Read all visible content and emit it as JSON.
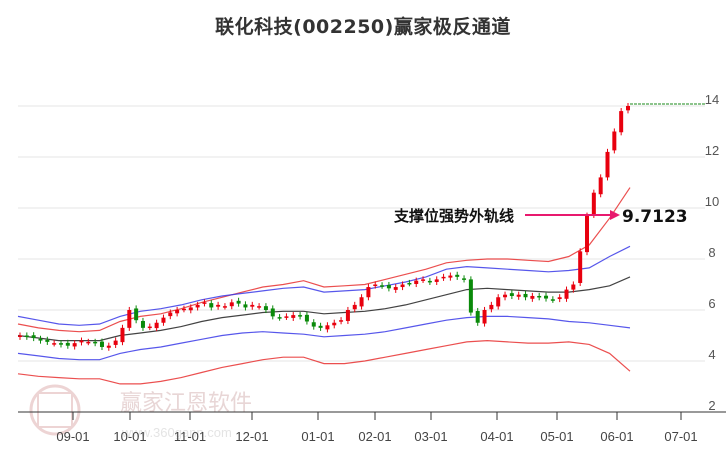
{
  "chart_data": {
    "type": "candlestick",
    "title": "联化科技(002250)赢家极反通道",
    "xlabel": "",
    "ylabel": "",
    "ylim": [
      2,
      14
    ],
    "yticks": [
      2,
      4,
      6,
      8,
      10,
      12,
      14
    ],
    "xticks": [
      "09-01",
      "10-01",
      "11-01",
      "12-01",
      "01-01",
      "02-01",
      "03-01",
      "04-01",
      "05-01",
      "06-01",
      "07-01"
    ],
    "grid": true,
    "annotation": {
      "label": "支撑位强势外轨线",
      "value": "9.7123",
      "arrow_color": "#e8196e"
    },
    "last_price_line": 14,
    "series": [
      {
        "name": "outer-upper-band",
        "color": "#e83030",
        "values": [
          5.45,
          5.3,
          5.2,
          5.15,
          5.2,
          5.55,
          5.75,
          5.85,
          6.05,
          6.3,
          6.5,
          6.7,
          6.9,
          7.0,
          7.15,
          6.9,
          6.95,
          7.0,
          7.2,
          7.4,
          7.6,
          7.85,
          7.95,
          8.0,
          8.0,
          7.95,
          7.9,
          8.1,
          8.55,
          9.6,
          10.8
        ]
      },
      {
        "name": "inner-upper-band",
        "color": "#3a3ae8",
        "values": [
          5.75,
          5.6,
          5.45,
          5.4,
          5.45,
          5.75,
          5.95,
          6.05,
          6.2,
          6.4,
          6.55,
          6.65,
          6.75,
          6.85,
          6.9,
          6.7,
          6.75,
          6.8,
          6.95,
          7.1,
          7.3,
          7.6,
          7.7,
          7.65,
          7.6,
          7.55,
          7.5,
          7.55,
          7.65,
          8.1,
          8.5
        ]
      },
      {
        "name": "middle-line",
        "color": "#222222",
        "values": [
          5.0,
          4.9,
          4.8,
          4.8,
          4.8,
          5.0,
          5.1,
          5.2,
          5.35,
          5.55,
          5.7,
          5.8,
          5.9,
          5.95,
          5.95,
          5.85,
          5.9,
          5.95,
          6.05,
          6.2,
          6.4,
          6.6,
          6.8,
          6.85,
          6.8,
          6.75,
          6.7,
          6.7,
          6.8,
          6.95,
          7.3
        ]
      },
      {
        "name": "inner-lower-band",
        "color": "#3a3ae8",
        "values": [
          4.3,
          4.2,
          4.1,
          4.05,
          4.05,
          4.3,
          4.45,
          4.55,
          4.7,
          4.85,
          5.0,
          5.1,
          5.15,
          5.1,
          5.05,
          4.95,
          5.0,
          5.05,
          5.15,
          5.3,
          5.45,
          5.6,
          5.7,
          5.75,
          5.75,
          5.7,
          5.65,
          5.55,
          5.5,
          5.4,
          5.3
        ]
      },
      {
        "name": "outer-lower-band",
        "color": "#e83030",
        "values": [
          3.5,
          3.4,
          3.35,
          3.3,
          3.3,
          3.1,
          3.1,
          3.2,
          3.35,
          3.55,
          3.75,
          3.9,
          4.05,
          4.15,
          4.15,
          3.9,
          3.9,
          4.0,
          4.15,
          4.3,
          4.45,
          4.6,
          4.75,
          4.8,
          4.75,
          4.7,
          4.7,
          4.75,
          4.65,
          4.3,
          3.6
        ]
      }
    ],
    "close_prices": [
      5.0,
      4.95,
      4.9,
      4.8,
      4.75,
      4.7,
      4.65,
      4.6,
      4.7,
      4.8,
      4.75,
      4.7,
      4.55,
      4.6,
      4.8,
      5.3,
      6.0,
      5.6,
      5.3,
      5.35,
      5.5,
      5.7,
      5.9,
      6.0,
      6.05,
      6.1,
      6.2,
      6.3,
      6.1,
      6.2,
      6.15,
      6.3,
      6.25,
      6.1,
      6.2,
      6.15,
      6.0,
      5.75,
      5.7,
      5.75,
      5.8,
      5.75,
      5.55,
      5.35,
      5.3,
      5.4,
      5.5,
      5.6,
      6.0,
      6.2,
      6.5,
      6.9,
      7.0,
      6.95,
      6.85,
      6.9,
      7.0,
      7.05,
      7.15,
      7.2,
      7.1,
      7.2,
      7.3,
      7.35,
      7.3,
      7.2,
      5.9,
      5.5,
      6.0,
      6.2,
      6.5,
      6.6,
      6.55,
      6.6,
      6.5,
      6.55,
      6.5,
      6.45,
      6.4,
      6.5,
      6.8,
      7.0,
      8.3,
      9.7,
      10.6,
      11.2,
      12.2,
      13.0,
      13.8,
      14.0
    ],
    "colors": {
      "up": "#e8000e",
      "down": "#0a8a0a"
    }
  },
  "watermark": {
    "name": "赢家江恩软件",
    "url": "www.360gann.com",
    "seal_chars": [
      "江",
      "赢",
      "恩",
      "家"
    ]
  }
}
